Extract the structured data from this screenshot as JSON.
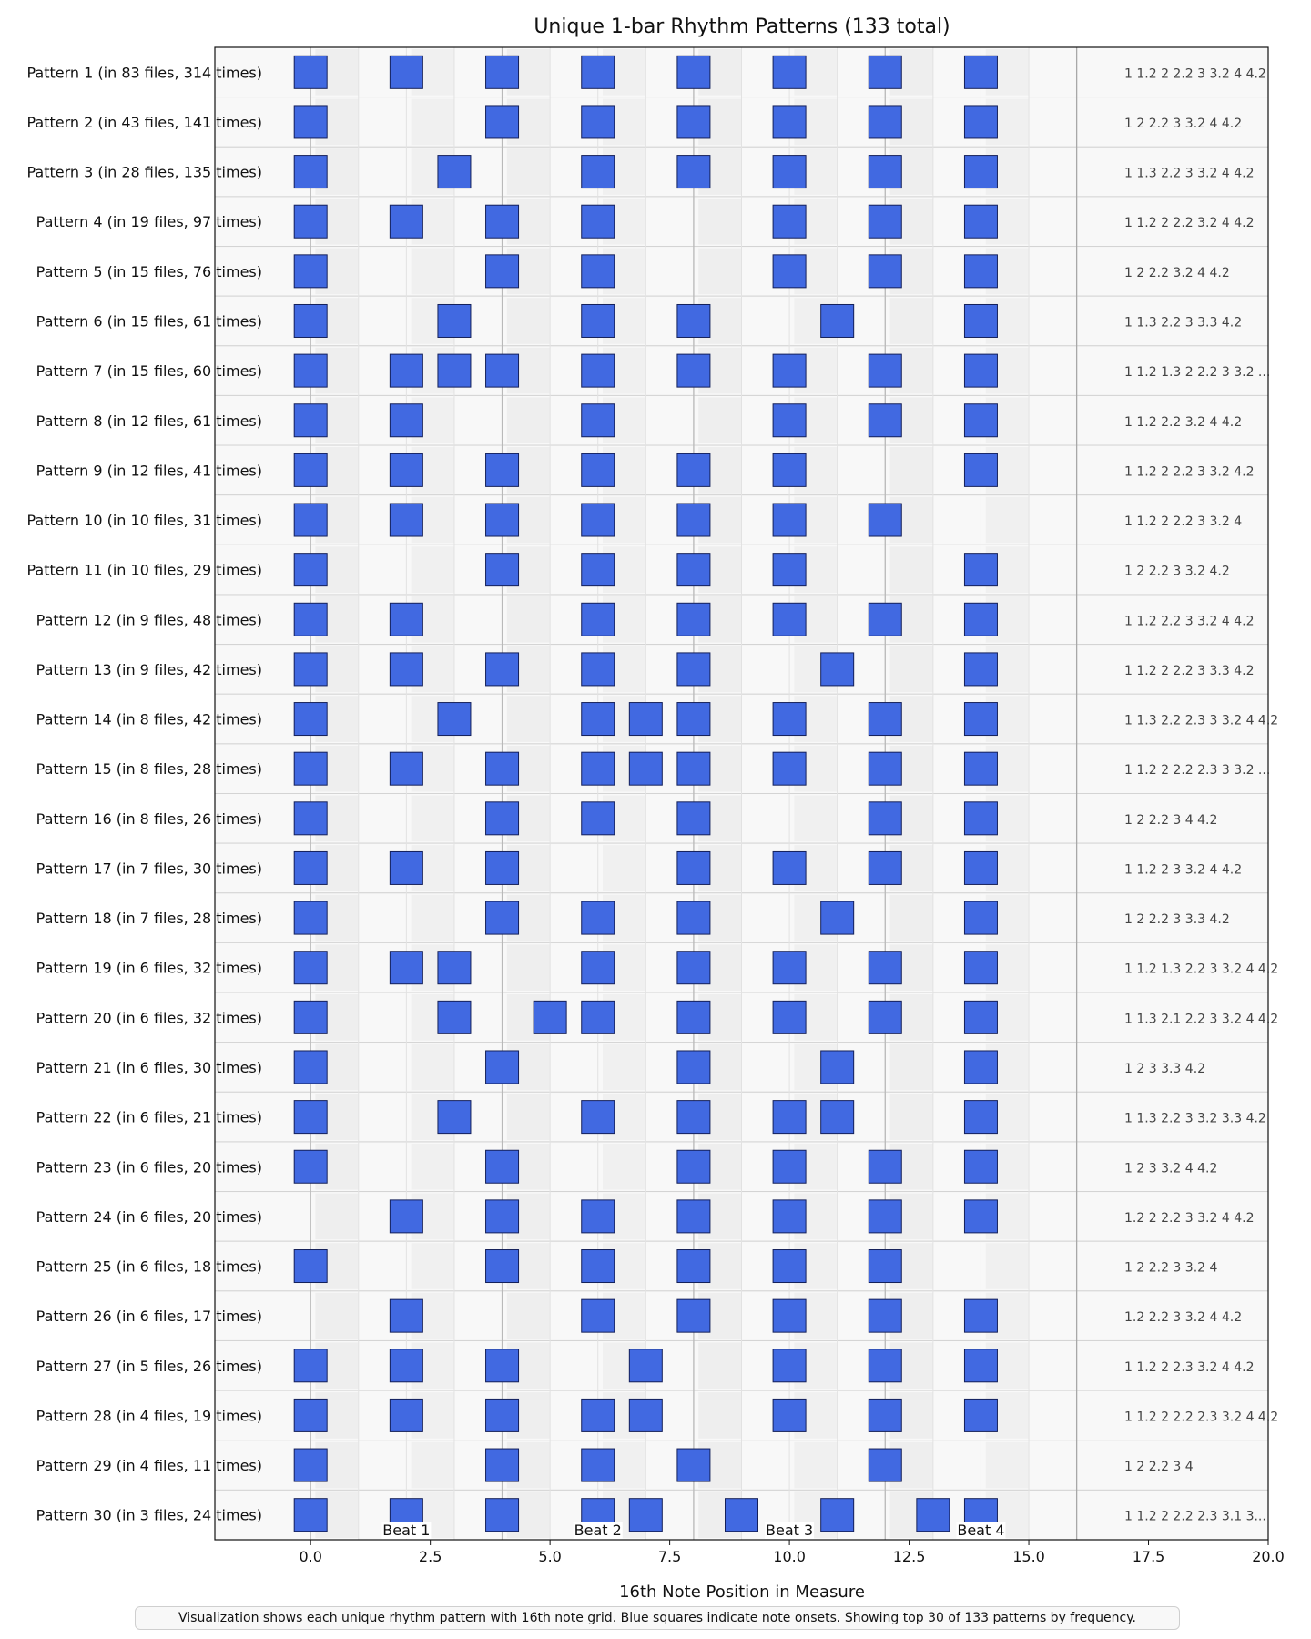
{
  "chart_data": {
    "type": "scatter",
    "title": "Unique 1-bar Rhythm Patterns (133 total)",
    "xlabel": "16th Note Position in Measure",
    "ylabel": "",
    "xlim": [
      -2,
      20
    ],
    "x_ticks": [
      0.0,
      2.5,
      5.0,
      7.5,
      10.0,
      12.5,
      15.0,
      17.5,
      20.0
    ],
    "x_tick_labels": [
      "0.0",
      "2.5",
      "5.0",
      "7.5",
      "10.0",
      "12.5",
      "15.0",
      "17.5",
      "20.0"
    ],
    "beat_labels": [
      {
        "x": 2,
        "text": "Beat 1"
      },
      {
        "x": 6,
        "text": "Beat 2"
      },
      {
        "x": 10,
        "text": "Beat 3"
      },
      {
        "x": 14,
        "text": "Beat 4"
      }
    ],
    "measure_end_x": 16,
    "grid": true,
    "marker_color": "#4169e1",
    "patterns": [
      {
        "label": "Pattern 1 (in 83 files, 314 times)",
        "onsets": [
          0,
          2,
          4,
          6,
          8,
          10,
          12,
          14
        ],
        "notation": "1 1.2 2 2.2 3 3.2 4 4.2"
      },
      {
        "label": "Pattern 2 (in 43 files, 141 times)",
        "onsets": [
          0,
          4,
          6,
          8,
          10,
          12,
          14
        ],
        "notation": "1 2 2.2 3 3.2 4 4.2"
      },
      {
        "label": "Pattern 3 (in 28 files, 135 times)",
        "onsets": [
          0,
          3,
          6,
          8,
          10,
          12,
          14
        ],
        "notation": "1 1.3 2.2 3 3.2 4 4.2"
      },
      {
        "label": "Pattern 4 (in 19 files, 97 times)",
        "onsets": [
          0,
          2,
          4,
          6,
          10,
          12,
          14
        ],
        "notation": "1 1.2 2 2.2 3.2 4 4.2"
      },
      {
        "label": "Pattern 5 (in 15 files, 76 times)",
        "onsets": [
          0,
          4,
          6,
          10,
          12,
          14
        ],
        "notation": "1 2 2.2 3.2 4 4.2"
      },
      {
        "label": "Pattern 6 (in 15 files, 61 times)",
        "onsets": [
          0,
          3,
          6,
          8,
          11,
          14
        ],
        "notation": "1 1.3 2.2 3 3.3 4.2"
      },
      {
        "label": "Pattern 7 (in 15 files, 60 times)",
        "onsets": [
          0,
          2,
          3,
          4,
          6,
          8,
          10,
          12,
          14
        ],
        "notation": "1 1.2 1.3 2 2.2 3 3.2 ..."
      },
      {
        "label": "Pattern 8 (in 12 files, 61 times)",
        "onsets": [
          0,
          2,
          6,
          10,
          12,
          14
        ],
        "notation": "1 1.2 2.2 3.2 4 4.2"
      },
      {
        "label": "Pattern 9 (in 12 files, 41 times)",
        "onsets": [
          0,
          2,
          4,
          6,
          8,
          10,
          14
        ],
        "notation": "1 1.2 2 2.2 3 3.2 4.2"
      },
      {
        "label": "Pattern 10 (in 10 files, 31 times)",
        "onsets": [
          0,
          2,
          4,
          6,
          8,
          10,
          12
        ],
        "notation": "1 1.2 2 2.2 3 3.2 4"
      },
      {
        "label": "Pattern 11 (in 10 files, 29 times)",
        "onsets": [
          0,
          4,
          6,
          8,
          10,
          14
        ],
        "notation": "1 2 2.2 3 3.2 4.2"
      },
      {
        "label": "Pattern 12 (in 9 files, 48 times)",
        "onsets": [
          0,
          2,
          6,
          8,
          10,
          12,
          14
        ],
        "notation": "1 1.2 2.2 3 3.2 4 4.2"
      },
      {
        "label": "Pattern 13 (in 9 files, 42 times)",
        "onsets": [
          0,
          2,
          4,
          6,
          8,
          11,
          14
        ],
        "notation": "1 1.2 2 2.2 3 3.3 4.2"
      },
      {
        "label": "Pattern 14 (in 8 files, 42 times)",
        "onsets": [
          0,
          3,
          6,
          7,
          8,
          10,
          12,
          14
        ],
        "notation": "1 1.3 2.2 2.3 3 3.2 4 4.2"
      },
      {
        "label": "Pattern 15 (in 8 files, 28 times)",
        "onsets": [
          0,
          2,
          4,
          6,
          7,
          8,
          10,
          12,
          14
        ],
        "notation": "1 1.2 2 2.2 2.3 3 3.2 ..."
      },
      {
        "label": "Pattern 16 (in 8 files, 26 times)",
        "onsets": [
          0,
          4,
          6,
          8,
          12,
          14
        ],
        "notation": "1 2 2.2 3 4 4.2"
      },
      {
        "label": "Pattern 17 (in 7 files, 30 times)",
        "onsets": [
          0,
          2,
          4,
          8,
          10,
          12,
          14
        ],
        "notation": "1 1.2 2 3 3.2 4 4.2"
      },
      {
        "label": "Pattern 18 (in 7 files, 28 times)",
        "onsets": [
          0,
          4,
          6,
          8,
          11,
          14
        ],
        "notation": "1 2 2.2 3 3.3 4.2"
      },
      {
        "label": "Pattern 19 (in 6 files, 32 times)",
        "onsets": [
          0,
          2,
          3,
          6,
          8,
          10,
          12,
          14
        ],
        "notation": "1 1.2 1.3 2.2 3 3.2 4 4.2"
      },
      {
        "label": "Pattern 20 (in 6 files, 32 times)",
        "onsets": [
          0,
          3,
          5,
          6,
          8,
          10,
          12,
          14
        ],
        "notation": "1 1.3 2.1 2.2 3 3.2 4 4.2"
      },
      {
        "label": "Pattern 21 (in 6 files, 30 times)",
        "onsets": [
          0,
          4,
          8,
          11,
          14
        ],
        "notation": "1 2 3 3.3 4.2"
      },
      {
        "label": "Pattern 22 (in 6 files, 21 times)",
        "onsets": [
          0,
          3,
          6,
          8,
          10,
          11,
          14
        ],
        "notation": "1 1.3 2.2 3 3.2 3.3 4.2"
      },
      {
        "label": "Pattern 23 (in 6 files, 20 times)",
        "onsets": [
          0,
          4,
          8,
          10,
          12,
          14
        ],
        "notation": "1 2 3 3.2 4 4.2"
      },
      {
        "label": "Pattern 24 (in 6 files, 20 times)",
        "onsets": [
          2,
          4,
          6,
          8,
          10,
          12,
          14
        ],
        "notation": "1.2 2 2.2 3 3.2 4 4.2"
      },
      {
        "label": "Pattern 25 (in 6 files, 18 times)",
        "onsets": [
          0,
          4,
          6,
          8,
          10,
          12
        ],
        "notation": "1 2 2.2 3 3.2 4"
      },
      {
        "label": "Pattern 26 (in 6 files, 17 times)",
        "onsets": [
          2,
          6,
          8,
          10,
          12,
          14
        ],
        "notation": "1.2 2.2 3 3.2 4 4.2"
      },
      {
        "label": "Pattern 27 (in 5 files, 26 times)",
        "onsets": [
          0,
          2,
          4,
          7,
          10,
          12,
          14
        ],
        "notation": "1 1.2 2 2.3 3.2 4 4.2"
      },
      {
        "label": "Pattern 28 (in 4 files, 19 times)",
        "onsets": [
          0,
          2,
          4,
          6,
          7,
          10,
          12,
          14
        ],
        "notation": "1 1.2 2 2.2 2.3 3.2 4 4.2"
      },
      {
        "label": "Pattern 29 (in 4 files, 11 times)",
        "onsets": [
          0,
          4,
          6,
          8,
          12
        ],
        "notation": "1 2 2.2 3 4"
      },
      {
        "label": "Pattern 30 (in 3 files, 24 times)",
        "onsets": [
          0,
          2,
          4,
          6,
          7,
          9,
          11,
          13,
          14
        ],
        "notation": "1 1.2 2 2.2 2.3 3.1 3..."
      }
    ],
    "caption": "Visualization shows each unique rhythm pattern with 16th note grid. Blue squares indicate note onsets. Showing top 30 of 133 patterns by frequency."
  }
}
